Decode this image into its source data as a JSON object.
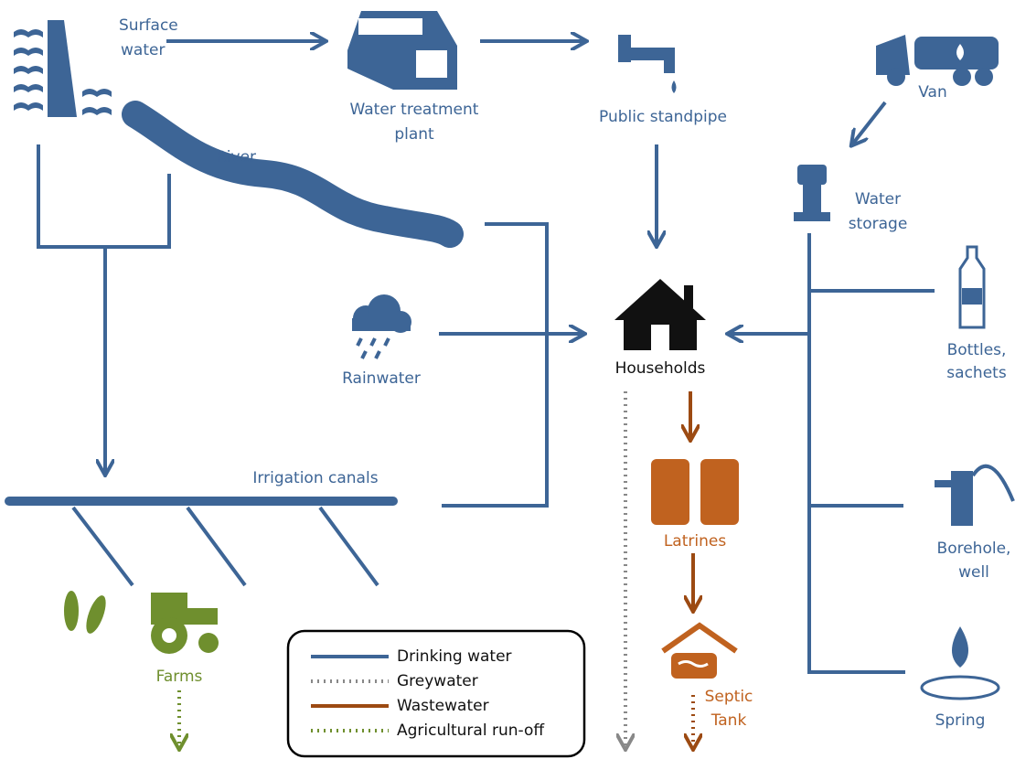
{
  "nodes": [
    {
      "lines": [
        "Surface",
        "water"
      ]
    },
    {
      "lines": [
        "Water treatment",
        "plant"
      ]
    },
    {
      "lines": [
        "Public standpipe"
      ]
    },
    {
      "lines": [
        "Van"
      ]
    },
    {
      "lines": [
        "River"
      ]
    },
    {
      "lines": [
        "Water",
        "storage"
      ]
    },
    {
      "lines": [
        "Rainwater"
      ]
    },
    {
      "lines": [
        "Households"
      ]
    },
    {
      "lines": [
        "Bottles,",
        "sachets"
      ]
    },
    {
      "lines": [
        "Irrigation canals"
      ]
    },
    {
      "lines": [
        "Latrines"
      ]
    },
    {
      "lines": [
        "Borehole,",
        "well"
      ]
    },
    {
      "lines": [
        "Farms"
      ]
    },
    {
      "lines": [
        "Septic",
        "Tank"
      ]
    },
    {
      "lines": [
        "Spring"
      ]
    }
  ],
  "legend": [
    {
      "label": "Drinking water"
    },
    {
      "label": "Greywater"
    },
    {
      "label": "Wastewater"
    },
    {
      "label": "Agricultural run-off"
    }
  ]
}
